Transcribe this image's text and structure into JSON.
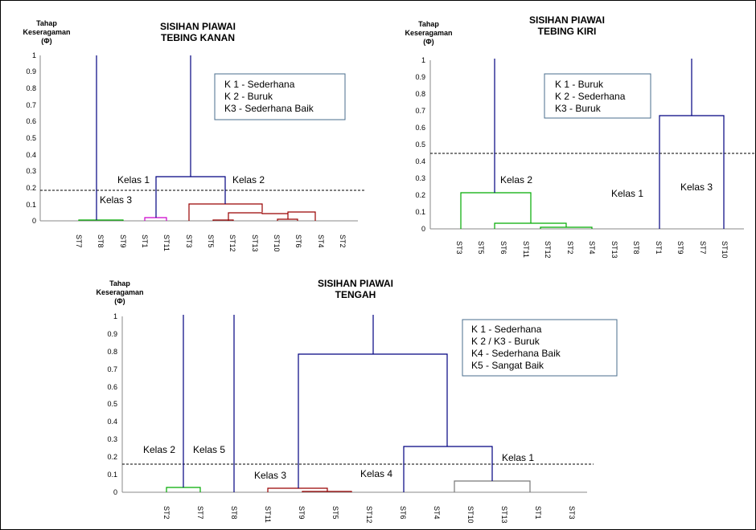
{
  "chart_data": [
    {
      "type": "dendrogram",
      "title": [
        "SISIHAN PIAWAI",
        "TEBING KANAN"
      ],
      "ylabel": [
        "Tahap",
        "Keseragaman",
        "(Φ)"
      ],
      "ylim": [
        0,
        1
      ],
      "yticks": [
        "0",
        "0.1",
        "0.2",
        "0.3",
        "0.4",
        "0.5",
        "0.6",
        "0.7",
        "0.8",
        "0.9",
        "1"
      ],
      "leaves": [
        "ST7",
        "ST8",
        "ST9",
        "ST1",
        "ST11",
        "ST3",
        "ST5",
        "ST12",
        "ST13",
        "ST10",
        "ST6",
        "ST4",
        "ST2"
      ],
      "cut_height": 0.18,
      "colors": {
        "K1": "#000080",
        "K2": "#00aa00",
        "K3": "#cc00cc",
        "K4": "#990000"
      },
      "class_labels": [
        {
          "text": "Kelas 1",
          "y": 0.25
        },
        {
          "text": "Kelas 2",
          "y": 0.25
        },
        {
          "text": "Kelas 3",
          "y": 0.12
        }
      ],
      "legend": [
        "K 1 - Sederhana",
        "K 2 - Buruk",
        "K3 - Sederhana Baik"
      ]
    },
    {
      "type": "dendrogram",
      "title": [
        "SISIHAN PIAWAI",
        "TEBING KIRI"
      ],
      "ylabel": [
        "Tahap",
        "Keseragaman",
        "(Φ)"
      ],
      "ylim": [
        0,
        1
      ],
      "yticks": [
        "0",
        "0.1",
        "0.2",
        "0.3",
        "0.4",
        "0.5",
        "0.6",
        "0.7",
        "0.8",
        "0.9",
        "1"
      ],
      "leaves": [
        "ST3",
        "ST5",
        "ST6",
        "ST11",
        "ST12",
        "ST2",
        "ST4",
        "ST13",
        "ST8",
        "ST1",
        "ST9",
        "ST7",
        "ST10"
      ],
      "cut_height": 0.44,
      "class_labels": [
        {
          "text": "Kelas 2",
          "y": 0.28
        },
        {
          "text": "Kelas 1",
          "y": 0.2
        },
        {
          "text": "Kelas 3",
          "y": 0.23
        }
      ],
      "legend": [
        "K 1 - Buruk",
        "K 2 - Sederhana",
        "K3 -  Buruk"
      ]
    },
    {
      "type": "dendrogram",
      "title": [
        "SISIHAN PIAWAI",
        "TENGAH"
      ],
      "ylabel": [
        "Tahap",
        "Keseragaman",
        "(Φ)"
      ],
      "ylim": [
        0,
        1
      ],
      "yticks": [
        "0",
        "0.1",
        "0.2",
        "0.3",
        "0.4",
        "0.5",
        "0.6",
        "0.7",
        "0.8",
        "0.9",
        "1"
      ],
      "leaves": [
        "ST2",
        "ST7",
        "ST8",
        "ST11",
        "ST9",
        "ST5",
        "ST12",
        "ST6",
        "ST4",
        "ST10",
        "ST13",
        "ST1",
        "ST3"
      ],
      "cut_height": 0.16,
      "class_labels": [
        {
          "text": "Kelas 2",
          "y": 0.22
        },
        {
          "text": "Kelas 5",
          "y": 0.22
        },
        {
          "text": "Kelas 3",
          "y": 0.1
        },
        {
          "text": "Kelas 4",
          "y": 0.11
        },
        {
          "text": "Kelas 1",
          "y": 0.18
        }
      ],
      "legend": [
        "K 1 - Sederhana",
        "K 2 / K3  - Buruk",
        "K4 -  Sederhana Baik",
        "K5 - Sangat Baik"
      ]
    }
  ]
}
